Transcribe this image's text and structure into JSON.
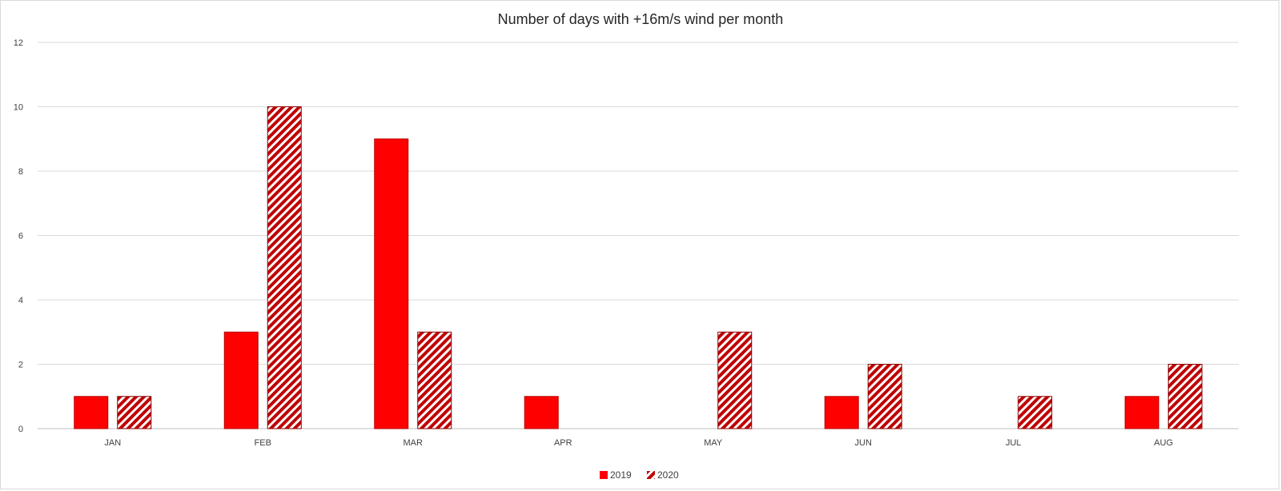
{
  "chart_data": {
    "type": "bar",
    "title": "Number of days with +16m/s wind per month",
    "xlabel": "",
    "ylabel": "",
    "categories": [
      "JAN",
      "FEB",
      "MAR",
      "APR",
      "MAY",
      "JUN",
      "JUL",
      "AUG"
    ],
    "series": [
      {
        "name": "2019",
        "values": [
          1,
          3,
          9,
          1,
          0,
          1,
          0,
          1
        ],
        "color": "#ff0000",
        "pattern": "solid"
      },
      {
        "name": "2020",
        "values": [
          1,
          10,
          3,
          0,
          3,
          2,
          1,
          2
        ],
        "color": "#c00000",
        "pattern": "diagonal-stripes"
      }
    ],
    "ylim": [
      0,
      12
    ],
    "yticks": [
      0,
      2,
      4,
      6,
      8,
      10,
      12
    ],
    "grid": true,
    "legend_position": "bottom"
  }
}
